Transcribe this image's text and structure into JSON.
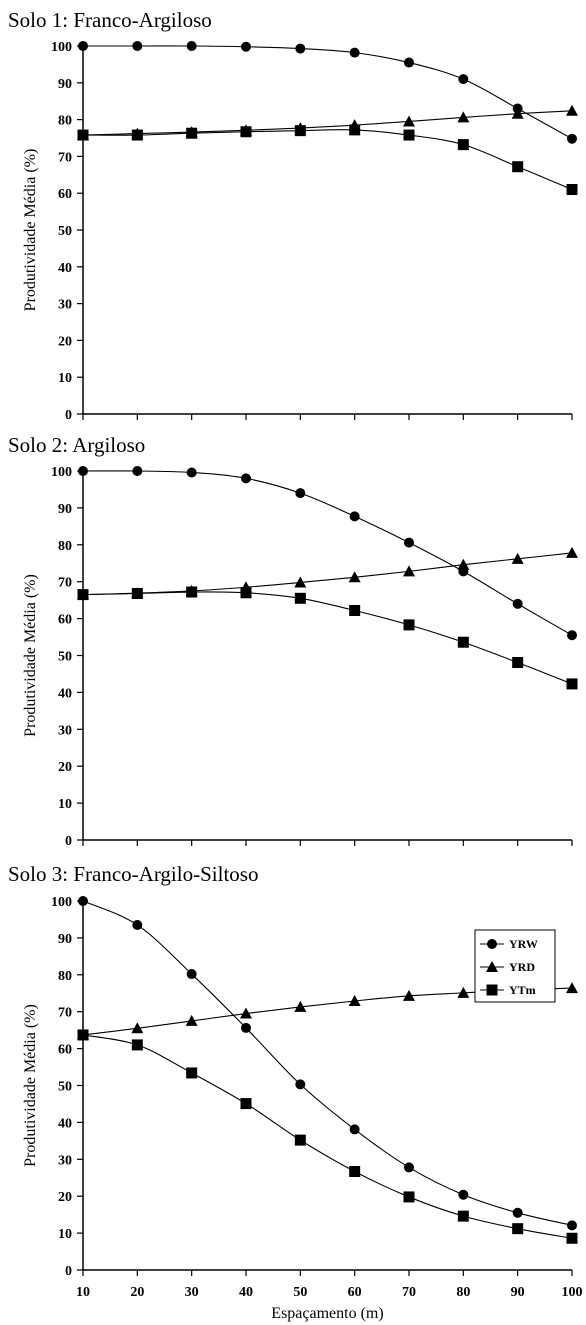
{
  "chart_data": [
    {
      "type": "line",
      "title": "Solo 1: Franco-Argiloso",
      "ylabel": "Produtividade Média (%)",
      "xlabel": "",
      "xlim": [
        10,
        100
      ],
      "ylim": [
        0,
        100
      ],
      "x_ticks": [
        10,
        20,
        30,
        40,
        50,
        60,
        70,
        80,
        90,
        100
      ],
      "y_ticks": [
        0,
        10,
        20,
        30,
        40,
        50,
        60,
        70,
        80,
        90,
        100
      ],
      "show_x_tick_labels": false,
      "x": [
        10,
        20,
        30,
        40,
        50,
        60,
        70,
        80,
        90,
        100
      ],
      "legend": null,
      "series": [
        {
          "name": "YRW",
          "marker": "circle",
          "values": [
            100,
            100,
            100,
            99.8,
            99.3,
            98.2,
            95.5,
            91,
            83,
            74.8
          ]
        },
        {
          "name": "YRD",
          "marker": "triangle",
          "values": [
            75.8,
            76.2,
            76.6,
            77.1,
            77.7,
            78.5,
            79.5,
            80.6,
            81.6,
            82.4
          ]
        },
        {
          "name": "YTm",
          "marker": "square",
          "values": [
            75.8,
            75.8,
            76.3,
            76.7,
            77,
            77.2,
            75.8,
            73.2,
            67.2,
            61
          ]
        }
      ]
    },
    {
      "type": "line",
      "title": "Solo 2: Argiloso",
      "ylabel": "Produtividade Média (%)",
      "xlabel": "",
      "xlim": [
        10,
        100
      ],
      "ylim": [
        0,
        100
      ],
      "x_ticks": [
        10,
        20,
        30,
        40,
        50,
        60,
        70,
        80,
        90,
        100
      ],
      "y_ticks": [
        0,
        10,
        20,
        30,
        40,
        50,
        60,
        70,
        80,
        90,
        100
      ],
      "show_x_tick_labels": false,
      "x": [
        10,
        20,
        30,
        40,
        50,
        60,
        70,
        80,
        90,
        100
      ],
      "legend": null,
      "series": [
        {
          "name": "YRW",
          "marker": "circle",
          "values": [
            100,
            100,
            99.6,
            98,
            94,
            87.7,
            80.6,
            72.8,
            64,
            55.5
          ]
        },
        {
          "name": "YRD",
          "marker": "triangle",
          "values": [
            66.5,
            66.9,
            67.5,
            68.5,
            69.8,
            71.2,
            72.8,
            74.6,
            76.2,
            77.8
          ]
        },
        {
          "name": "YTm",
          "marker": "square",
          "values": [
            66.5,
            66.8,
            67.2,
            67,
            65.5,
            62.2,
            58.3,
            53.6,
            48.1,
            42.3
          ]
        }
      ]
    },
    {
      "type": "line",
      "title": "Solo 3: Franco-Argilo-Siltoso",
      "ylabel": "Produtividade Média (%)",
      "xlabel": "Espaçamento (m)",
      "xlim": [
        10,
        100
      ],
      "ylim": [
        0,
        100
      ],
      "x_ticks": [
        10,
        20,
        30,
        40,
        50,
        60,
        70,
        80,
        90,
        100
      ],
      "y_ticks": [
        0,
        10,
        20,
        30,
        40,
        50,
        60,
        70,
        80,
        90,
        100
      ],
      "show_x_tick_labels": true,
      "x": [
        10,
        20,
        30,
        40,
        50,
        60,
        70,
        80,
        90,
        100
      ],
      "legend": "center-right",
      "series": [
        {
          "name": "YRW",
          "marker": "circle",
          "values": [
            100,
            93.5,
            80.2,
            65.6,
            50.3,
            38.1,
            27.8,
            20.4,
            15.5,
            12.1
          ]
        },
        {
          "name": "YRD",
          "marker": "triangle",
          "values": [
            63.7,
            65.5,
            67.5,
            69.5,
            71.3,
            72.9,
            74.3,
            75.1,
            75.9,
            76.4
          ]
        },
        {
          "name": "YTm",
          "marker": "square",
          "values": [
            63.7,
            61,
            53.4,
            45.1,
            35.2,
            26.7,
            19.8,
            14.6,
            11.2,
            8.6
          ]
        }
      ]
    }
  ]
}
